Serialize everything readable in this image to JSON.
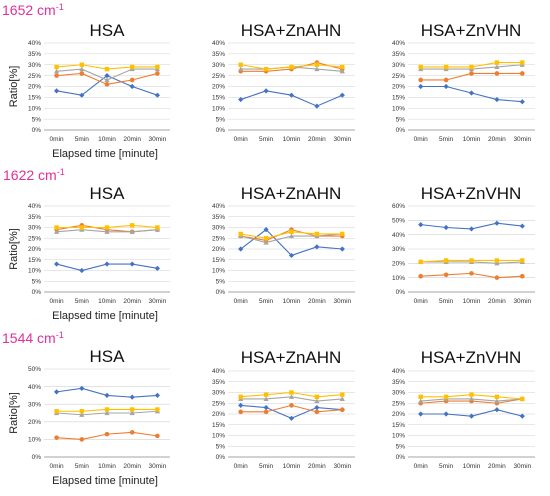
{
  "row_labels": [
    {
      "number": "1652",
      "unit": "cm",
      "sup": "-1"
    },
    {
      "number": "1622",
      "unit": "cm",
      "sup": "-1"
    },
    {
      "number": "1544",
      "unit": "cm",
      "sup": "-1"
    }
  ],
  "common": {
    "ylabel": "Ratio[%]",
    "xlabel": "Elapsed time [minute]",
    "x": [
      "0min",
      "5min",
      "10min",
      "20min",
      "30min"
    ]
  },
  "colors": [
    "#4472c4",
    "#ed7d31",
    "#a5a5a5",
    "#ffc000"
  ],
  "chart_data": [
    {
      "type": "line",
      "title": "HSA",
      "ylim": [
        0,
        40
      ],
      "yticks": [
        0,
        5,
        10,
        15,
        20,
        25,
        30,
        35,
        40
      ],
      "show_ylabel": true,
      "show_xlabel": true,
      "x": [
        "0min",
        "5min",
        "10min",
        "20min",
        "30min"
      ],
      "series": [
        {
          "values": [
            18,
            16,
            25,
            20,
            16
          ]
        },
        {
          "values": [
            25,
            26,
            21,
            23,
            26
          ]
        },
        {
          "values": [
            27,
            28,
            23,
            28,
            28
          ]
        },
        {
          "values": [
            29,
            30,
            28,
            29,
            29
          ]
        }
      ]
    },
    {
      "type": "line",
      "title": "HSA+ZnAHN",
      "ylim": [
        0,
        40
      ],
      "yticks": [
        0,
        5,
        10,
        15,
        20,
        25,
        30,
        35,
        40
      ],
      "show_ylabel": false,
      "show_xlabel": false,
      "x": [
        "0min",
        "5min",
        "10min",
        "20min",
        "30min"
      ],
      "series": [
        {
          "values": [
            14,
            18,
            16,
            11,
            16
          ]
        },
        {
          "values": [
            27,
            27,
            28,
            31,
            28
          ]
        },
        {
          "values": [
            28,
            28,
            29,
            28,
            27
          ]
        },
        {
          "values": [
            30,
            28,
            29,
            30,
            29
          ]
        }
      ]
    },
    {
      "type": "line",
      "title": "HSA+ZnVHN",
      "ylim": [
        0,
        40
      ],
      "yticks": [
        0,
        5,
        10,
        15,
        20,
        25,
        30,
        35,
        40
      ],
      "show_ylabel": false,
      "show_xlabel": false,
      "x": [
        "0min",
        "5min",
        "10min",
        "20min",
        "30min"
      ],
      "series": [
        {
          "values": [
            20,
            20,
            17,
            14,
            13
          ]
        },
        {
          "values": [
            23,
            23,
            26,
            26,
            26
          ]
        },
        {
          "values": [
            28,
            28,
            28,
            29,
            30
          ]
        },
        {
          "values": [
            29,
            29,
            29,
            31,
            31
          ]
        }
      ]
    },
    {
      "type": "line",
      "title": "HSA",
      "ylim": [
        0,
        40
      ],
      "yticks": [
        0,
        5,
        10,
        15,
        20,
        25,
        30,
        35,
        40
      ],
      "show_ylabel": true,
      "show_xlabel": true,
      "x": [
        "0min",
        "5min",
        "10min",
        "20min",
        "30min"
      ],
      "series": [
        {
          "values": [
            13,
            10,
            13,
            13,
            11
          ]
        },
        {
          "values": [
            29,
            31,
            29,
            28,
            29
          ]
        },
        {
          "values": [
            28,
            29,
            28,
            28,
            29
          ]
        },
        {
          "values": [
            30,
            30,
            30,
            31,
            30
          ]
        }
      ]
    },
    {
      "type": "line",
      "title": "HSA+ZnAHN",
      "ylim": [
        0,
        40
      ],
      "yticks": [
        0,
        5,
        10,
        15,
        20,
        25,
        30,
        35,
        40
      ],
      "show_ylabel": false,
      "show_xlabel": false,
      "x": [
        "0min",
        "5min",
        "10min",
        "20min",
        "30min"
      ],
      "series": [
        {
          "values": [
            20,
            29,
            17,
            21,
            20
          ]
        },
        {
          "values": [
            26,
            24,
            29,
            26,
            26
          ]
        },
        {
          "values": [
            26,
            23,
            26,
            26,
            27
          ]
        },
        {
          "values": [
            27,
            25,
            28,
            27,
            27
          ]
        }
      ]
    },
    {
      "type": "line",
      "title": "HSA+ZnVHN",
      "ylim": [
        0,
        60
      ],
      "yticks": [
        0,
        10,
        20,
        30,
        40,
        50,
        60
      ],
      "show_ylabel": false,
      "show_xlabel": false,
      "x": [
        "0min",
        "5min",
        "10min",
        "20min",
        "30min"
      ],
      "series": [
        {
          "values": [
            47,
            45,
            44,
            48,
            46
          ]
        },
        {
          "values": [
            11,
            12,
            13,
            10,
            11
          ]
        },
        {
          "values": [
            21,
            21,
            21,
            20,
            21
          ]
        },
        {
          "values": [
            21,
            22,
            22,
            22,
            22
          ]
        }
      ]
    },
    {
      "type": "line",
      "title": "HSA",
      "ylim": [
        0,
        50
      ],
      "yticks": [
        0,
        10,
        20,
        30,
        40,
        50
      ],
      "show_ylabel": true,
      "show_xlabel": true,
      "x": [
        "0min",
        "5min",
        "10min",
        "20min",
        "30min"
      ],
      "series": [
        {
          "values": [
            37,
            39,
            35,
            34,
            35
          ]
        },
        {
          "values": [
            11,
            10,
            13,
            14,
            12
          ]
        },
        {
          "values": [
            25,
            24,
            25,
            25,
            26
          ]
        },
        {
          "values": [
            26,
            26,
            27,
            27,
            27
          ]
        }
      ]
    },
    {
      "type": "line",
      "title": "HSA+ZnAHN",
      "ylim": [
        0,
        40
      ],
      "yticks": [
        0,
        5,
        10,
        15,
        20,
        25,
        30,
        35,
        40
      ],
      "show_ylabel": false,
      "show_xlabel": false,
      "x": [
        "0min",
        "5min",
        "10min",
        "20min",
        "30min"
      ],
      "series": [
        {
          "values": [
            24,
            23,
            18,
            23,
            22
          ]
        },
        {
          "values": [
            21,
            21,
            24,
            21,
            22
          ]
        },
        {
          "values": [
            27,
            27,
            28,
            26,
            27
          ]
        },
        {
          "values": [
            28,
            29,
            30,
            28,
            29
          ]
        }
      ]
    },
    {
      "type": "line",
      "title": "HSA+ZnVHN",
      "ylim": [
        0,
        40
      ],
      "yticks": [
        0,
        5,
        10,
        15,
        20,
        25,
        30,
        35,
        40
      ],
      "show_ylabel": false,
      "show_xlabel": false,
      "x": [
        "0min",
        "5min",
        "10min",
        "20min",
        "30min"
      ],
      "series": [
        {
          "values": [
            20,
            20,
            19,
            22,
            19
          ]
        },
        {
          "values": [
            25,
            26,
            26,
            25,
            27
          ]
        },
        {
          "values": [
            26,
            27,
            27,
            26,
            27
          ]
        },
        {
          "values": [
            28,
            28,
            29,
            28,
            27
          ]
        }
      ]
    }
  ]
}
